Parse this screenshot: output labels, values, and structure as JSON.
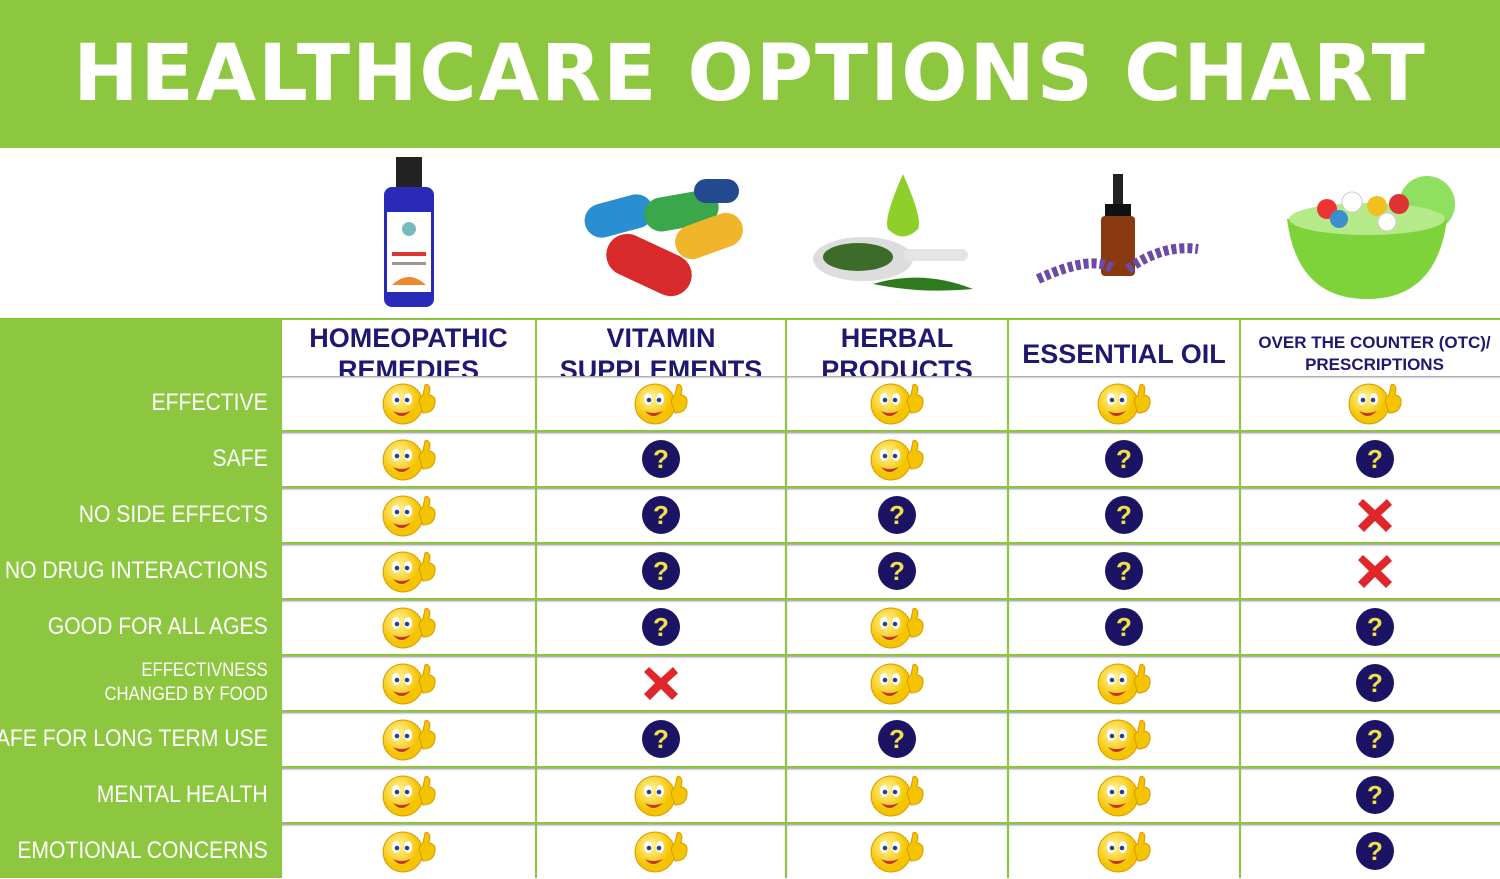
{
  "title": "HEALTHCARE OPTIONS CHART",
  "colors": {
    "green": "#8dc63f",
    "navy": "#1e1870",
    "yes": "#f5c400",
    "unknown": "#1b1464",
    "no": "#e0262b"
  },
  "legend_icons": {
    "yes": "thumbs-up-smiley-icon",
    "unknown": "question-mark-icon",
    "no": "red-x-icon"
  },
  "chart_data": {
    "type": "table",
    "title": "HEALTHCARE OPTIONS CHART",
    "columns": [
      "HOMEOPATHIC\nREMEDIES",
      "VITAMIN\nSUPPLEMENTS",
      "HERBAL\nPRODUCTS",
      "ESSENTIAL OIL",
      "OVER THE COUNTER (OTC)/\nPRESCRIPTIONS"
    ],
    "column_images": [
      "homeopathic-bottle-image",
      "vitamin-capsules-image",
      "herbal-leaves-image",
      "essential-oil-dropper-image",
      "pill-bowl-image"
    ],
    "rows": [
      {
        "label": "EFFECTIVE",
        "values": [
          "yes",
          "yes",
          "yes",
          "yes",
          "yes"
        ]
      },
      {
        "label": "SAFE",
        "values": [
          "yes",
          "unknown",
          "yes",
          "unknown",
          "unknown"
        ]
      },
      {
        "label": "NO SIDE EFFECTS",
        "values": [
          "yes",
          "unknown",
          "unknown",
          "unknown",
          "no"
        ]
      },
      {
        "label": "NO DRUG INTERACTIONS",
        "values": [
          "yes",
          "unknown",
          "unknown",
          "unknown",
          "no"
        ]
      },
      {
        "label": "GOOD FOR ALL AGES",
        "values": [
          "yes",
          "unknown",
          "yes",
          "unknown",
          "unknown"
        ]
      },
      {
        "label": "EFFECTIVNESS\nCHANGED BY FOOD",
        "values": [
          "yes",
          "no",
          "yes",
          "yes",
          "unknown"
        ]
      },
      {
        "label": "SAFE FOR LONG TERM USE",
        "values": [
          "yes",
          "unknown",
          "unknown",
          "yes",
          "unknown"
        ]
      },
      {
        "label": "MENTAL HEALTH",
        "values": [
          "yes",
          "yes",
          "yes",
          "yes",
          "unknown"
        ]
      },
      {
        "label": "EMOTIONAL CONCERNS",
        "values": [
          "yes",
          "yes",
          "yes",
          "yes",
          "unknown"
        ]
      }
    ]
  }
}
